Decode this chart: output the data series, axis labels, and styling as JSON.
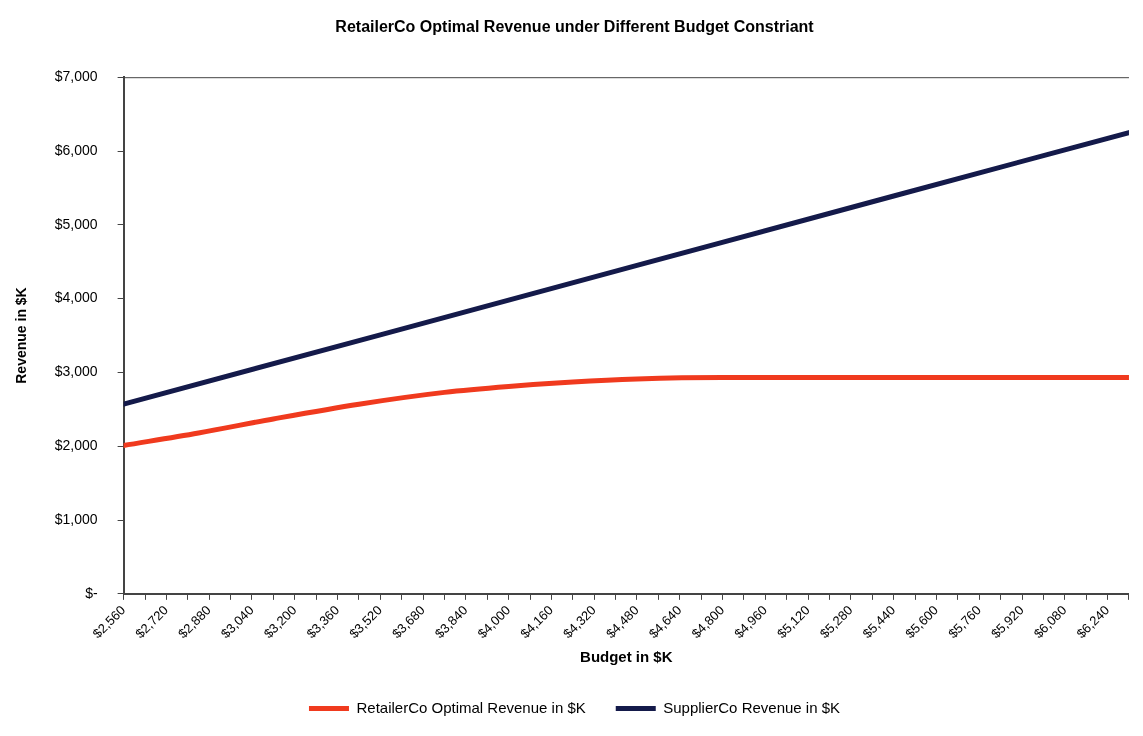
{
  "chart_data": {
    "type": "line",
    "title": "RetailerCo Optimal Revenue under Different Budget Constriant",
    "xlabel": "Budget in $K",
    "ylabel": "Revenue in $K",
    "xlim": [
      2560,
      6320
    ],
    "xticks": [
      {
        "value": 2560,
        "label": "$2,560"
      },
      {
        "value": 2640,
        "label": null
      },
      {
        "value": 2720,
        "label": "$2,720"
      },
      {
        "value": 2800,
        "label": null
      },
      {
        "value": 2880,
        "label": "$2,880"
      },
      {
        "value": 2960,
        "label": null
      },
      {
        "value": 3040,
        "label": "$3,040"
      },
      {
        "value": 3120,
        "label": null
      },
      {
        "value": 3200,
        "label": "$3,200"
      },
      {
        "value": 3280,
        "label": null
      },
      {
        "value": 3360,
        "label": "$3,360"
      },
      {
        "value": 3440,
        "label": null
      },
      {
        "value": 3520,
        "label": "$3,520"
      },
      {
        "value": 3600,
        "label": null
      },
      {
        "value": 3680,
        "label": "$3,680"
      },
      {
        "value": 3760,
        "label": null
      },
      {
        "value": 3840,
        "label": "$3,840"
      },
      {
        "value": 3920,
        "label": null
      },
      {
        "value": 4000,
        "label": "$4,000"
      },
      {
        "value": 4080,
        "label": null
      },
      {
        "value": 4160,
        "label": "$4,160"
      },
      {
        "value": 4240,
        "label": null
      },
      {
        "value": 4320,
        "label": "$4,320"
      },
      {
        "value": 4400,
        "label": null
      },
      {
        "value": 4480,
        "label": "$4,480"
      },
      {
        "value": 4560,
        "label": null
      },
      {
        "value": 4640,
        "label": "$4,640"
      },
      {
        "value": 4720,
        "label": null
      },
      {
        "value": 4800,
        "label": "$4,800"
      },
      {
        "value": 4880,
        "label": null
      },
      {
        "value": 4960,
        "label": "$4,960"
      },
      {
        "value": 5040,
        "label": null
      },
      {
        "value": 5120,
        "label": "$5,120"
      },
      {
        "value": 5200,
        "label": null
      },
      {
        "value": 5280,
        "label": "$5,280"
      },
      {
        "value": 5360,
        "label": null
      },
      {
        "value": 5440,
        "label": "$5,440"
      },
      {
        "value": 5520,
        "label": null
      },
      {
        "value": 5600,
        "label": "$5,600"
      },
      {
        "value": 5680,
        "label": null
      },
      {
        "value": 5760,
        "label": "$5,760"
      },
      {
        "value": 5840,
        "label": null
      },
      {
        "value": 5920,
        "label": "$5,920"
      },
      {
        "value": 6000,
        "label": null
      },
      {
        "value": 6080,
        "label": "$6,080"
      },
      {
        "value": 6160,
        "label": null
      },
      {
        "value": 6240,
        "label": "$6,240"
      },
      {
        "value": 6320,
        "label": null
      }
    ],
    "ylim": [
      0,
      7000
    ],
    "yticks": [
      {
        "value": 0,
        "label": "$-"
      },
      {
        "value": 1000,
        "label": "$1,000"
      },
      {
        "value": 2000,
        "label": "$2,000"
      },
      {
        "value": 3000,
        "label": "$3,000"
      },
      {
        "value": 4000,
        "label": "$4,000"
      },
      {
        "value": 5000,
        "label": "$5,000"
      },
      {
        "value": 6000,
        "label": "$6,000"
      },
      {
        "value": 7000,
        "label": "$7,000"
      }
    ],
    "series": [
      {
        "name": "RetailerCo Optimal Revenue in $K",
        "color": "#f03a1e",
        "x": [
          2560,
          2840,
          3120,
          3440,
          3760,
          4000,
          4240,
          4480,
          4800,
          5200,
          5760,
          6320
        ],
        "values": [
          2010,
          2180,
          2370,
          2570,
          2730,
          2810,
          2870,
          2910,
          2930,
          2930,
          2930,
          2930
        ]
      },
      {
        "name": "SupplierCo Revenue in $K",
        "color": "#141a4a",
        "x": [
          2560,
          3520,
          4480,
          5440,
          6320
        ],
        "values": [
          2570,
          3510,
          4450,
          5390,
          6250
        ]
      }
    ],
    "grid": false,
    "legend": "bottom",
    "marker": "none",
    "line_style": "solid"
  }
}
